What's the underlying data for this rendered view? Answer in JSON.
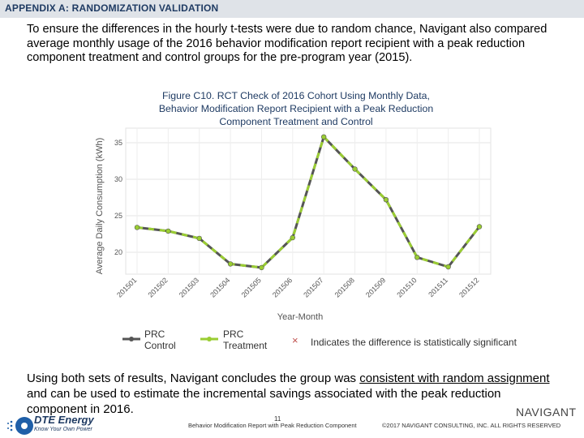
{
  "header": {
    "title": "APPENDIX A: RANDOMIZATION VALIDATION"
  },
  "intro": {
    "text": "To ensure the differences in the hourly t-tests were due to random chance, Navigant also compared average monthly usage of the 2016 behavior modification report recipient with a peak reduction component treatment and control groups for the pre-program year (2015)."
  },
  "figure": {
    "title_lines": [
      "Figure C10. RCT Check of 2016 Cohort Using Monthly Data,",
      "Behavior Modification Report Recipient with a Peak Reduction",
      "Component Treatment and Control"
    ]
  },
  "chart_data": {
    "type": "line",
    "categories": [
      "201501",
      "201502",
      "201503",
      "201504",
      "201505",
      "201506",
      "201507",
      "201508",
      "201509",
      "201510",
      "201511",
      "201512"
    ],
    "series": [
      {
        "name": "PRC Control",
        "color": "#555555",
        "values": [
          23.4,
          22.9,
          21.9,
          18.4,
          17.9,
          22.0,
          35.8,
          31.4,
          27.2,
          19.3,
          18.0,
          23.5
        ]
      },
      {
        "name": "PRC Treatment",
        "color": "#9acd32",
        "values": [
          23.4,
          22.9,
          21.9,
          18.4,
          17.9,
          22.0,
          35.8,
          31.4,
          27.2,
          19.3,
          18.0,
          23.5
        ]
      }
    ],
    "xlabel": "Year-Month",
    "ylabel": "Average Daily Consumption (kWh)",
    "yticks": [
      20,
      25,
      30,
      35
    ],
    "ylim": [
      17,
      37
    ],
    "grid": true,
    "legend_position": "bottom"
  },
  "legend": {
    "control_label_1": "PRC",
    "control_label_2": "Control",
    "treatment_label_1": "PRC",
    "treatment_label_2": "Treatment",
    "significance_label": "Indicates the difference is statistically significant",
    "significance_marker": "×"
  },
  "conclusion": {
    "part1": "Using both sets of results, Navigant concludes the group was ",
    "underlined": "consistent with random assignment",
    "part2": " and can be used to estimate the incremental savings associated with the peak reduction component in 2016."
  },
  "footer": {
    "logo_name": "DTE Energy",
    "logo_tagline": "Know Your Own Power",
    "page_number": "11",
    "middle_text": "Behavior Modification Report with Peak Reduction Component",
    "brand": "NAVIGANT",
    "copyright": "©2017 NAVIGANT CONSULTING, INC. ALL RIGHTS RESERVED"
  }
}
